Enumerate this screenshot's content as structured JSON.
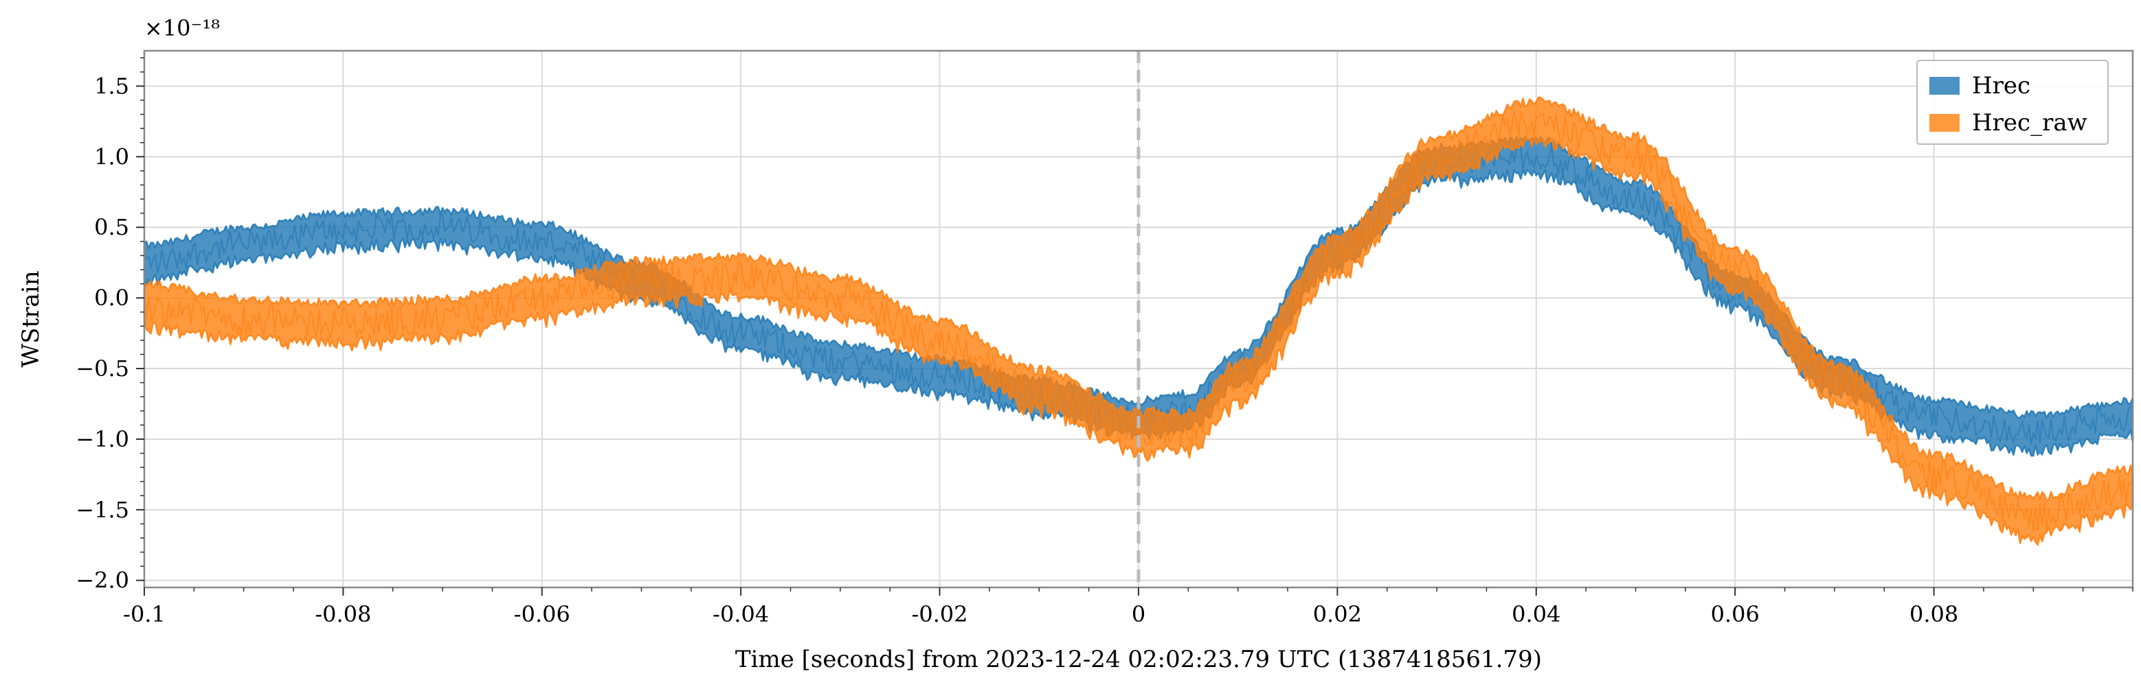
{
  "chart_data": {
    "type": "line",
    "xlabel": "Time [seconds] from 2023-12-24 02:02:23.79 UTC (1387418561.79)",
    "ylabel": "WStrain",
    "y_multiplier": "×10⁻¹⁸",
    "xlim": [
      -0.1,
      0.1
    ],
    "ylim": [
      -2.05,
      1.75
    ],
    "x_ticks": [
      -0.1,
      -0.08,
      -0.06,
      -0.04,
      -0.02,
      0,
      0.02,
      0.04,
      0.06,
      0.08
    ],
    "x_tick_labels": [
      "-0.1",
      "-0.08",
      "-0.06",
      "-0.04",
      "-0.02",
      "0",
      "0.02",
      "0.04",
      "0.06",
      "0.08"
    ],
    "y_ticks": [
      1.5,
      1.0,
      0.5,
      0.0,
      -0.5,
      -1.0,
      -1.5,
      -2.0
    ],
    "y_tick_labels": [
      "1.5",
      "1.0",
      "0.5",
      "0.0",
      "−0.5",
      "−1.0",
      "−1.5",
      "−2.0"
    ],
    "grid": true,
    "legend_position": "top-right",
    "reference_line": {
      "x": 0,
      "style": "dashed",
      "color": "#bbbbbb"
    },
    "series": [
      {
        "name": "Hrec",
        "color": "#1f77b4",
        "band_half_width": 0.12,
        "x": [
          -0.1,
          -0.09,
          -0.08,
          -0.07,
          -0.06,
          -0.05,
          -0.04,
          -0.03,
          -0.02,
          -0.01,
          0.0,
          0.005,
          0.01,
          0.02,
          0.03,
          0.04,
          0.05,
          0.06,
          0.07,
          0.08,
          0.09,
          0.1
        ],
        "values": [
          0.25,
          0.38,
          0.48,
          0.5,
          0.4,
          0.12,
          -0.25,
          -0.45,
          -0.55,
          -0.7,
          -0.85,
          -0.8,
          -0.5,
          0.35,
          0.95,
          1.0,
          0.7,
          0.05,
          -0.55,
          -0.85,
          -0.95,
          -0.85
        ]
      },
      {
        "name": "Hrec_raw",
        "color": "#ff7f0e",
        "band_half_width": 0.14,
        "x": [
          -0.1,
          -0.09,
          -0.08,
          -0.07,
          -0.06,
          -0.05,
          -0.04,
          -0.03,
          -0.02,
          -0.01,
          0.0,
          0.005,
          0.01,
          0.02,
          0.03,
          0.04,
          0.05,
          0.06,
          0.07,
          0.08,
          0.09,
          0.1
        ],
        "values": [
          -0.05,
          -0.15,
          -0.18,
          -0.15,
          0.0,
          0.12,
          0.15,
          0.0,
          -0.3,
          -0.65,
          -0.95,
          -0.95,
          -0.6,
          0.3,
          1.0,
          1.25,
          1.0,
          0.2,
          -0.6,
          -1.25,
          -1.55,
          -1.35
        ]
      }
    ]
  }
}
